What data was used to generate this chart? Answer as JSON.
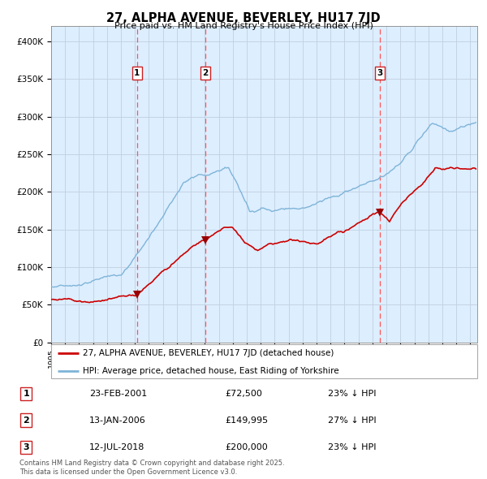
{
  "title": "27, ALPHA AVENUE, BEVERLEY, HU17 7JD",
  "subtitle": "Price paid vs. HM Land Registry's House Price Index (HPI)",
  "legend_line1": "27, ALPHA AVENUE, BEVERLEY, HU17 7JD (detached house)",
  "legend_line2": "HPI: Average price, detached house, East Riding of Yorkshire",
  "footer_line1": "Contains HM Land Registry data © Crown copyright and database right 2025.",
  "footer_line2": "This data is licensed under the Open Government Licence v3.0.",
  "transactions": [
    {
      "label": "1",
      "date": "23-FEB-2001",
      "price_str": "£72,500",
      "price": 72500,
      "note": "23% ↓ HPI",
      "year": 2001.148
    },
    {
      "label": "2",
      "date": "13-JAN-2006",
      "price_str": "£149,995",
      "price": 149995,
      "note": "27% ↓ HPI",
      "year": 2006.036
    },
    {
      "label": "3",
      "date": "12-JUL-2018",
      "price_str": "£200,000",
      "price": 200000,
      "note": "23% ↓ HPI",
      "year": 2018.53
    }
  ],
  "ylim": [
    0,
    420000
  ],
  "xlim_start": 1995.0,
  "xlim_end": 2025.5,
  "hpi_color": "#7eb4d8",
  "price_color": "#cc0000",
  "chart_bg_color": "#ddeeff",
  "grid_color": "#c0d0e0",
  "vline_color": "#ff5555",
  "marker_color": "#990000",
  "box_edge_color": "#cc2222"
}
